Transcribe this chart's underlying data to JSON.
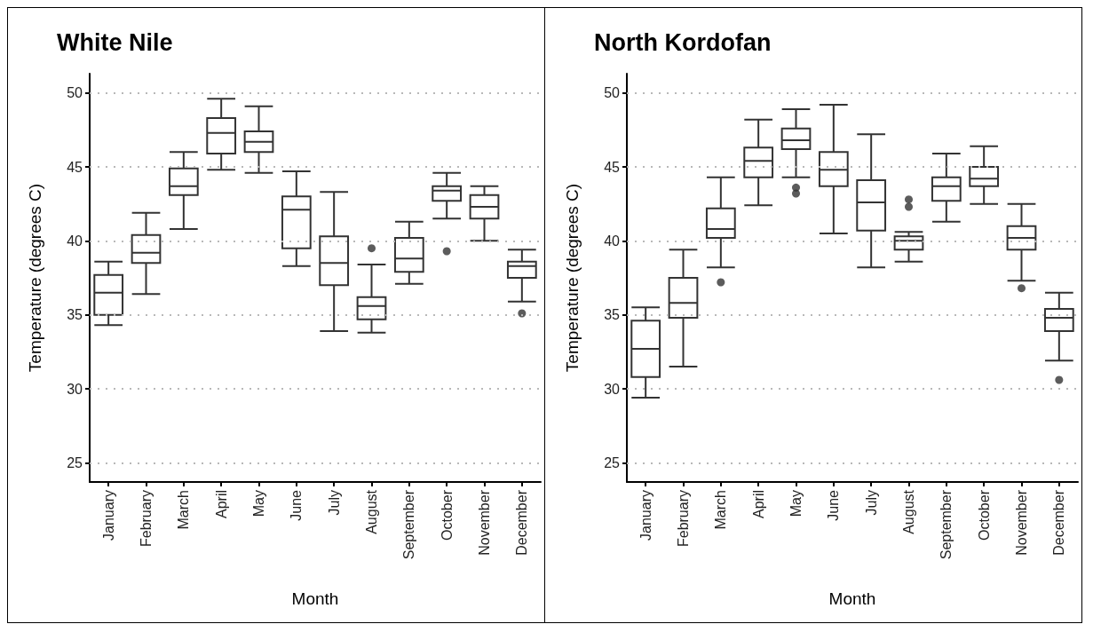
{
  "chart_data": [
    {
      "type": "box",
      "title": "White Nile",
      "xlabel": "Month",
      "ylabel": "Temperature (degrees C)",
      "categories": [
        "January",
        "February",
        "March",
        "April",
        "May",
        "June",
        "July",
        "August",
        "September",
        "October",
        "November",
        "December"
      ],
      "color": "#333333",
      "ylim": [
        23.7,
        51.3
      ],
      "yticks": [
        25,
        30,
        35,
        40,
        45,
        50
      ],
      "grid": "y",
      "boxes": [
        {
          "low": 34.3,
          "q1": 35.0,
          "median": 36.5,
          "q3": 37.7,
          "high": 38.6
        },
        {
          "low": 36.4,
          "q1": 38.5,
          "median": 39.2,
          "q3": 40.4,
          "high": 41.9
        },
        {
          "low": 40.8,
          "q1": 43.1,
          "median": 43.7,
          "q3": 44.9,
          "high": 46.0
        },
        {
          "low": 44.8,
          "q1": 45.9,
          "median": 47.3,
          "q3": 48.3,
          "high": 49.6
        },
        {
          "low": 44.6,
          "q1": 46.0,
          "median": 46.7,
          "q3": 47.4,
          "high": 49.1
        },
        {
          "low": 38.3,
          "q1": 39.5,
          "median": 42.1,
          "q3": 43.0,
          "high": 44.7
        },
        {
          "low": 33.9,
          "q1": 37.0,
          "median": 38.5,
          "q3": 40.3,
          "high": 43.3
        },
        {
          "low": 33.8,
          "q1": 34.7,
          "median": 35.6,
          "q3": 36.2,
          "high": 38.4,
          "outliers": [
            39.5
          ]
        },
        {
          "low": 37.1,
          "q1": 37.9,
          "median": 38.8,
          "q3": 40.2,
          "high": 41.3
        },
        {
          "low": 41.5,
          "q1": 42.7,
          "median": 43.4,
          "q3": 43.7,
          "high": 44.6,
          "outliers": [
            39.3
          ]
        },
        {
          "low": 40.0,
          "q1": 41.5,
          "median": 42.3,
          "q3": 43.1,
          "high": 43.7
        },
        {
          "low": 35.9,
          "q1": 37.5,
          "median": 38.3,
          "q3": 38.6,
          "high": 39.4,
          "outliers": [
            35.1
          ]
        }
      ]
    },
    {
      "type": "box",
      "title": "North Kordofan",
      "xlabel": "Month",
      "ylabel": "Temperature (degrees C)",
      "categories": [
        "January",
        "February",
        "March",
        "April",
        "May",
        "June",
        "July",
        "August",
        "September",
        "October",
        "November",
        "December"
      ],
      "color": "#333333",
      "ylim": [
        23.7,
        51.3
      ],
      "yticks": [
        25,
        30,
        35,
        40,
        45,
        50
      ],
      "grid": "y",
      "boxes": [
        {
          "low": 29.4,
          "q1": 30.8,
          "median": 32.7,
          "q3": 34.6,
          "high": 35.5
        },
        {
          "low": 31.5,
          "q1": 34.8,
          "median": 35.8,
          "q3": 37.5,
          "high": 39.4
        },
        {
          "low": 38.2,
          "q1": 40.2,
          "median": 40.8,
          "q3": 42.2,
          "high": 44.3,
          "outliers": [
            37.2
          ]
        },
        {
          "low": 42.4,
          "q1": 44.3,
          "median": 45.4,
          "q3": 46.3,
          "high": 48.2
        },
        {
          "low": 44.3,
          "q1": 46.2,
          "median": 46.8,
          "q3": 47.6,
          "high": 48.9,
          "outliers": [
            43.6,
            43.2
          ]
        },
        {
          "low": 40.5,
          "q1": 43.7,
          "median": 44.8,
          "q3": 46.0,
          "high": 49.2
        },
        {
          "low": 38.2,
          "q1": 40.7,
          "median": 42.6,
          "q3": 44.1,
          "high": 47.2
        },
        {
          "low": 38.6,
          "q1": 39.4,
          "median": 40.0,
          "q3": 40.3,
          "high": 40.6,
          "outliers": [
            42.8,
            42.3
          ]
        },
        {
          "low": 41.3,
          "q1": 42.7,
          "median": 43.7,
          "q3": 44.3,
          "high": 45.9
        },
        {
          "low": 42.5,
          "q1": 43.7,
          "median": 44.2,
          "q3": 45.0,
          "high": 46.4
        },
        {
          "low": 37.3,
          "q1": 39.4,
          "median": 40.2,
          "q3": 41.0,
          "high": 42.5,
          "outliers": [
            36.8
          ]
        },
        {
          "low": 31.9,
          "q1": 33.9,
          "median": 34.8,
          "q3": 35.4,
          "high": 36.5,
          "outliers": [
            30.6
          ]
        }
      ]
    }
  ]
}
